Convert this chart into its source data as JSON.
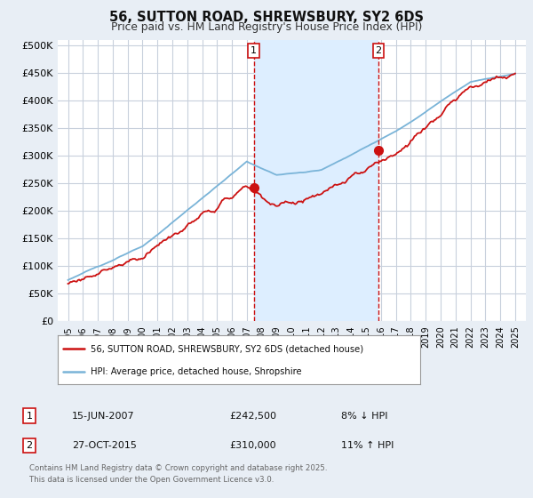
{
  "title": "56, SUTTON ROAD, SHREWSBURY, SY2 6DS",
  "subtitle": "Price paid vs. HM Land Registry's House Price Index (HPI)",
  "ylim": [
    0,
    500000
  ],
  "yticks": [
    0,
    50000,
    100000,
    150000,
    200000,
    250000,
    300000,
    350000,
    400000,
    450000,
    500000
  ],
  "ytick_labels": [
    "£0",
    "£50K",
    "£100K",
    "£150K",
    "£200K",
    "£250K",
    "£300K",
    "£350K",
    "£400K",
    "£450K",
    "£500K"
  ],
  "hpi_color": "#7ab4d8",
  "price_color": "#cc1111",
  "sale1_year": 2007.46,
  "sale1_price": 242500,
  "sale1_date_str": "15-JUN-2007",
  "sale1_pct": "8% ↓ HPI",
  "sale2_year": 2015.83,
  "sale2_price": 310000,
  "sale2_date_str": "27-OCT-2015",
  "sale2_pct": "11% ↑ HPI",
  "shade_color": "#ddeeff",
  "legend_line1": "56, SUTTON ROAD, SHREWSBURY, SY2 6DS (detached house)",
  "legend_line2": "HPI: Average price, detached house, Shropshire",
  "footnote": "Contains HM Land Registry data © Crown copyright and database right 2025.\nThis data is licensed under the Open Government Licence v3.0.",
  "background_color": "#e8eef5",
  "plot_bg": "#ffffff",
  "grid_color": "#c8d0dc"
}
